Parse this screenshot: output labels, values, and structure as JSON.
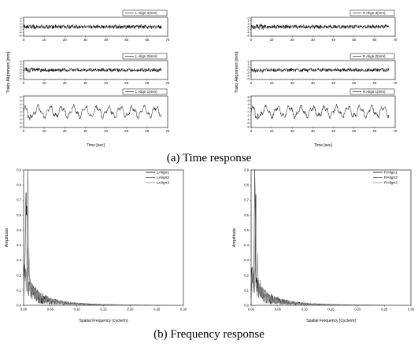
{
  "captions": {
    "time": "(a) Time response",
    "freq": "(b) Frequency response"
  },
  "chart_data": [
    {
      "type": "line",
      "panel": "left-time",
      "ylabel": "Traks Alignment [mm]",
      "xlabel": "Time [sec]",
      "xlim": [
        0,
        70
      ],
      "xticks": [
        "0",
        "10",
        "20",
        "30",
        "40",
        "50",
        "60",
        "70"
      ],
      "series": [
        {
          "name": "L Align 3(mm)",
          "ylim": [
            -6,
            6
          ],
          "yticks": [
            "6",
            "4",
            "2",
            "0",
            "-2",
            "-4",
            "-6"
          ],
          "duration": 67,
          "amplitude": 1.1,
          "base_freq": 3.0,
          "style": "noise"
        },
        {
          "name": "L Align 2(mm)",
          "ylim": [
            -6,
            6
          ],
          "yticks": [
            "6",
            "4",
            "2",
            "0",
            "-2",
            "-4",
            "-6"
          ],
          "duration": 67,
          "amplitude": 1.0,
          "base_freq": 2.0,
          "style": "noise"
        },
        {
          "name": "L Align 1(mm)",
          "ylim": [
            -8,
            8
          ],
          "yticks": [
            "8",
            "6",
            "4",
            "2",
            "0",
            "-2",
            "-4",
            "-6",
            "-8"
          ],
          "duration": 67,
          "amplitude": 3.0,
          "base_freq": 0.55,
          "style": "wave"
        }
      ]
    },
    {
      "type": "line",
      "panel": "right-time",
      "ylabel": "Traks Alignment [mm]",
      "xlabel": "Time [sec]",
      "xlim": [
        0,
        70
      ],
      "xticks": [
        "0",
        "10",
        "20",
        "30",
        "40",
        "50",
        "60",
        "70"
      ],
      "series": [
        {
          "name": "R Align 3(mm)",
          "ylim": [
            -6,
            6
          ],
          "yticks": [
            "6",
            "4",
            "2",
            "0",
            "-2",
            "-4",
            "-6"
          ],
          "duration": 67,
          "amplitude": 1.1,
          "base_freq": 3.0,
          "style": "noise"
        },
        {
          "name": "R Align 2(mm)",
          "ylim": [
            -6,
            6
          ],
          "yticks": [
            "6",
            "4",
            "2",
            "0",
            "-2",
            "-4",
            "-6"
          ],
          "duration": 67,
          "amplitude": 1.0,
          "base_freq": 2.0,
          "style": "noise"
        },
        {
          "name": "R Align 1(mm)",
          "ylim": [
            -8,
            8
          ],
          "yticks": [
            "8",
            "6",
            "4",
            "2",
            "0",
            "-2",
            "-4",
            "-6",
            "-8"
          ],
          "duration": 67,
          "amplitude": 3.0,
          "base_freq": 0.55,
          "style": "wave"
        }
      ]
    },
    {
      "type": "line",
      "panel": "left-freq",
      "ylabel": "Amplitude",
      "xlabel": "Spatial Frequency (cycle/m)",
      "xlim": [
        0,
        0.3
      ],
      "ylim": [
        0,
        0.9
      ],
      "xticks": [
        "0.00",
        "0.05",
        "0.10",
        "0.15",
        "0.20",
        "0.25",
        "0.30"
      ],
      "yticks": [
        "0.0",
        "0.1",
        "0.2",
        "0.3",
        "0.4",
        "0.5",
        "0.6",
        "0.7",
        "0.8",
        "0.9"
      ],
      "legend": "top-right",
      "series": [
        {
          "name": "LAlign1",
          "color": "#000000",
          "peaks": [
            [
              0.004,
              0.56
            ],
            [
              0.006,
              0.4
            ]
          ]
        },
        {
          "name": "LAlign2",
          "color": "#555555",
          "peaks": [
            [
              0.008,
              0.85
            ]
          ]
        },
        {
          "name": "LAlign3",
          "color": "#888888",
          "peaks": [
            [
              0.01,
              0.22
            ]
          ]
        }
      ]
    },
    {
      "type": "line",
      "panel": "right-freq",
      "ylabel": "Amplitude",
      "xlabel": "Spatial Frequency [Cycle/m]",
      "xlim": [
        0,
        0.3
      ],
      "ylim": [
        0,
        0.9
      ],
      "xticks": [
        "0.00",
        "0.05",
        "0.10",
        "0.15",
        "0.20",
        "0.25",
        "0.30"
      ],
      "yticks": [
        "0.0",
        "0.1",
        "0.2",
        "0.3",
        "0.4",
        "0.5",
        "0.6",
        "0.7",
        "0.8",
        "0.9"
      ],
      "legend": "top-right",
      "series": [
        {
          "name": "RAlign1",
          "color": "#000000",
          "peaks": [
            [
              0.007,
              0.78
            ]
          ]
        },
        {
          "name": "RAlign2",
          "color": "#555555",
          "peaks": [
            [
              0.009,
              0.72
            ]
          ]
        },
        {
          "name": "RAlign3",
          "color": "#888888",
          "peaks": [
            [
              0.012,
              0.2
            ]
          ]
        }
      ]
    }
  ]
}
